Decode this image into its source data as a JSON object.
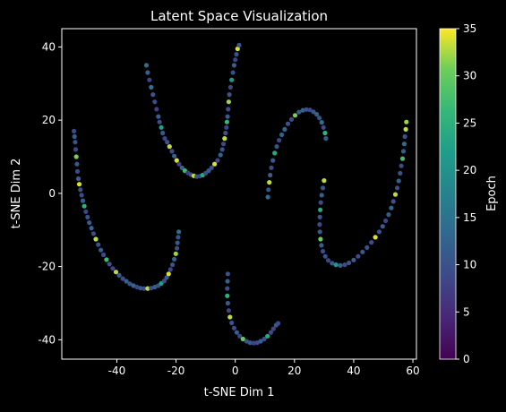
{
  "chart_data": {
    "type": "scatter",
    "title": "Latent Space Visualization",
    "xlabel": "t-SNE Dim 1",
    "ylabel": "t-SNE Dim 2",
    "xlim": [
      -58.6,
      61.2
    ],
    "ylim": [
      -45.3,
      45
    ],
    "xticks": [
      -40,
      -20,
      0,
      20,
      40,
      60
    ],
    "yticks": [
      -40,
      -20,
      0,
      20,
      40
    ],
    "grid": false,
    "background": "#000000",
    "colormap": "viridis",
    "colorbar": {
      "label": "Epoch",
      "min": 0,
      "max": 35,
      "ticks": [
        0,
        5,
        10,
        15,
        20,
        25,
        30,
        35
      ]
    },
    "points": [
      [
        -30,
        35,
        14
      ],
      [
        -29.6,
        33,
        12
      ],
      [
        -29,
        31,
        8
      ],
      [
        -28.4,
        29,
        15
      ],
      [
        -27.8,
        27,
        10
      ],
      [
        -27.2,
        25,
        9
      ],
      [
        -26.6,
        23,
        7
      ],
      [
        -26,
        21,
        12
      ],
      [
        -25.6,
        19.5,
        9
      ],
      [
        -25,
        18,
        22
      ],
      [
        -24.5,
        16.5,
        11
      ],
      [
        -23.8,
        15,
        8
      ],
      [
        -23,
        14,
        10
      ],
      [
        -22.2,
        12.8,
        33
      ],
      [
        -21.4,
        11.5,
        9
      ],
      [
        -20.6,
        10.2,
        12
      ],
      [
        -19.8,
        9,
        34
      ],
      [
        -19,
        8,
        8
      ],
      [
        -18,
        7,
        13
      ],
      [
        -17,
        6.2,
        27
      ],
      [
        -16,
        5.6,
        7
      ],
      [
        -15,
        5.1,
        9
      ],
      [
        -14,
        4.8,
        33
      ],
      [
        -13,
        4.6,
        10
      ],
      [
        -12,
        4.7,
        8
      ],
      [
        -11,
        5,
        24
      ],
      [
        -10,
        5.5,
        9
      ],
      [
        -9,
        6.2,
        11
      ],
      [
        -8,
        7,
        10
      ],
      [
        -7,
        8,
        34
      ],
      [
        -6,
        9,
        8
      ],
      [
        -5,
        10.5,
        12
      ],
      [
        -4.4,
        12,
        10
      ],
      [
        -4,
        13.5,
        9
      ],
      [
        -3.6,
        15,
        33
      ],
      [
        -3.3,
        16.5,
        10
      ],
      [
        -3,
        18,
        8
      ],
      [
        -2.8,
        19.5,
        26
      ],
      [
        -2.6,
        21,
        11
      ],
      [
        -2.4,
        23,
        9
      ],
      [
        -2.2,
        25,
        32
      ],
      [
        -2,
        27,
        10
      ],
      [
        -1.6,
        29,
        8
      ],
      [
        -1.2,
        31,
        21
      ],
      [
        -0.8,
        33,
        9
      ],
      [
        -0.4,
        35,
        12
      ],
      [
        0,
        36.5,
        8
      ],
      [
        0.4,
        38,
        10
      ],
      [
        0.8,
        39.5,
        34
      ],
      [
        1.3,
        40.5,
        11
      ],
      [
        -54.5,
        17,
        9
      ],
      [
        -54.3,
        15.5,
        12
      ],
      [
        -54.1,
        14,
        10
      ],
      [
        -53.9,
        12,
        8
      ],
      [
        -53.7,
        10,
        31
      ],
      [
        -53.5,
        8,
        11
      ],
      [
        -53.3,
        6,
        9
      ],
      [
        -53,
        4,
        12
      ],
      [
        -52.7,
        2.5,
        34
      ],
      [
        -52.3,
        1,
        10
      ],
      [
        -51.9,
        -0.5,
        9
      ],
      [
        -51.5,
        -2,
        12
      ],
      [
        -51,
        -3.5,
        25
      ],
      [
        -50.5,
        -5,
        8
      ],
      [
        -49.9,
        -6.5,
        10
      ],
      [
        -49.3,
        -8,
        11
      ],
      [
        -48.6,
        -9.5,
        13
      ],
      [
        -47.9,
        -11,
        9
      ],
      [
        -47.1,
        -12.5,
        33
      ],
      [
        -46.3,
        -14,
        10
      ],
      [
        -45.4,
        -15.5,
        12
      ],
      [
        -44.5,
        -16.8,
        9
      ],
      [
        -43.5,
        -18.1,
        27
      ],
      [
        -42.5,
        -19.3,
        10
      ],
      [
        -41.4,
        -20.5,
        8
      ],
      [
        -40.3,
        -21.5,
        33
      ],
      [
        -39.2,
        -22.4,
        11
      ],
      [
        -38,
        -23.3,
        9
      ],
      [
        -36.8,
        -24,
        12
      ],
      [
        -35.6,
        -24.7,
        10
      ],
      [
        -34.4,
        -25.2,
        13
      ],
      [
        -33.2,
        -25.6,
        8
      ],
      [
        -32,
        -25.9,
        11
      ],
      [
        -30.8,
        -26,
        10
      ],
      [
        -29.6,
        -26,
        33
      ],
      [
        -28.4,
        -25.9,
        9
      ],
      [
        -27.2,
        -25.6,
        12
      ],
      [
        -26,
        -25.2,
        10
      ],
      [
        -25,
        -24.6,
        22
      ],
      [
        -24,
        -23.9,
        9
      ],
      [
        -23.2,
        -23,
        11
      ],
      [
        -22.5,
        -22,
        34
      ],
      [
        -21.9,
        -20.8,
        8
      ],
      [
        -21.2,
        -19.5,
        10
      ],
      [
        -20.6,
        -18,
        12
      ],
      [
        -20.1,
        -16.5,
        32
      ],
      [
        -19.7,
        -15,
        9
      ],
      [
        -19.5,
        -13.5,
        11
      ],
      [
        -19.3,
        -12,
        10
      ],
      [
        -19.1,
        -10.5,
        14
      ],
      [
        -2.5,
        -22,
        10
      ],
      [
        -2.6,
        -24,
        12
      ],
      [
        -2.7,
        -26,
        9
      ],
      [
        -2.7,
        -28,
        25
      ],
      [
        -2.5,
        -30,
        11
      ],
      [
        -2.2,
        -32,
        8
      ],
      [
        -1.8,
        -33.8,
        33
      ],
      [
        -1.2,
        -35.4,
        10
      ],
      [
        -0.4,
        -36.8,
        9
      ],
      [
        0.5,
        -38,
        12
      ],
      [
        1.5,
        -39,
        8
      ],
      [
        2.6,
        -39.8,
        30
      ],
      [
        3.8,
        -40.4,
        10
      ],
      [
        5,
        -40.8,
        11
      ],
      [
        6.2,
        -40.9,
        8
      ],
      [
        7.4,
        -40.8,
        9
      ],
      [
        8.6,
        -40.4,
        12
      ],
      [
        9.8,
        -39.8,
        10
      ],
      [
        10.9,
        -39,
        24
      ],
      [
        12,
        -38,
        9
      ],
      [
        12.9,
        -37,
        8
      ],
      [
        13.8,
        -36,
        11
      ],
      [
        14.5,
        -35.5,
        9
      ],
      [
        11,
        -1,
        14
      ],
      [
        11.2,
        1,
        10
      ],
      [
        11.5,
        3,
        33
      ],
      [
        11.8,
        5,
        12
      ],
      [
        12.2,
        7,
        9
      ],
      [
        12.7,
        9,
        11
      ],
      [
        13.3,
        11,
        24
      ],
      [
        14,
        12.8,
        10
      ],
      [
        14.8,
        14.5,
        8
      ],
      [
        15.7,
        16,
        12
      ],
      [
        16.7,
        17.5,
        13
      ],
      [
        17.8,
        19,
        10
      ],
      [
        19,
        20.2,
        9
      ],
      [
        20.2,
        21.3,
        31
      ],
      [
        21.5,
        22.2,
        11
      ],
      [
        22.8,
        22.7,
        12
      ],
      [
        24,
        22.9,
        10
      ],
      [
        25.2,
        22.8,
        9
      ],
      [
        26.4,
        22.3,
        11
      ],
      [
        27.5,
        21.6,
        12
      ],
      [
        28.4,
        20.6,
        10
      ],
      [
        29.2,
        19.4,
        14
      ],
      [
        29.8,
        18,
        9
      ],
      [
        30.3,
        16.5,
        25
      ],
      [
        30.6,
        15,
        11
      ],
      [
        30,
        3.5,
        33
      ],
      [
        29.6,
        1.5,
        10
      ],
      [
        29.2,
        -0.5,
        12
      ],
      [
        28.9,
        -2.5,
        9
      ],
      [
        28.7,
        -4.5,
        24
      ],
      [
        28.6,
        -6.5,
        10
      ],
      [
        28.5,
        -8.5,
        9
      ],
      [
        28.6,
        -10.5,
        11
      ],
      [
        28.8,
        -12.5,
        30
      ],
      [
        29.1,
        -14.2,
        12
      ],
      [
        29.6,
        -15.8,
        9
      ],
      [
        30.4,
        -17.2,
        10
      ],
      [
        31.4,
        -18.3,
        8
      ],
      [
        32.7,
        -19.1,
        11
      ],
      [
        34,
        -19.5,
        21
      ],
      [
        35.5,
        -19.7,
        12
      ],
      [
        37,
        -19.5,
        9
      ],
      [
        38.4,
        -19,
        10
      ],
      [
        40,
        -18.2,
        12
      ],
      [
        41.5,
        -17.2,
        9
      ],
      [
        43,
        -16,
        11
      ],
      [
        44.5,
        -14.8,
        10
      ],
      [
        46,
        -13.4,
        9
      ],
      [
        47.3,
        -12,
        34
      ],
      [
        48.6,
        -10.5,
        10
      ],
      [
        49.8,
        -9,
        12
      ],
      [
        50.8,
        -7.5,
        8
      ],
      [
        51.8,
        -5.8,
        11
      ],
      [
        52.7,
        -4,
        13
      ],
      [
        53.4,
        -2.2,
        10
      ],
      [
        54.1,
        -0.3,
        33
      ],
      [
        54.7,
        1.5,
        9
      ],
      [
        55.2,
        3.4,
        12
      ],
      [
        55.7,
        5.5,
        10
      ],
      [
        56.1,
        7.5,
        9
      ],
      [
        56.5,
        9.5,
        27
      ],
      [
        56.8,
        11.5,
        11
      ],
      [
        57.1,
        13.5,
        14
      ],
      [
        57.3,
        15.5,
        10
      ],
      [
        57.6,
        17.5,
        33
      ],
      [
        57.8,
        19.5,
        32
      ]
    ]
  }
}
